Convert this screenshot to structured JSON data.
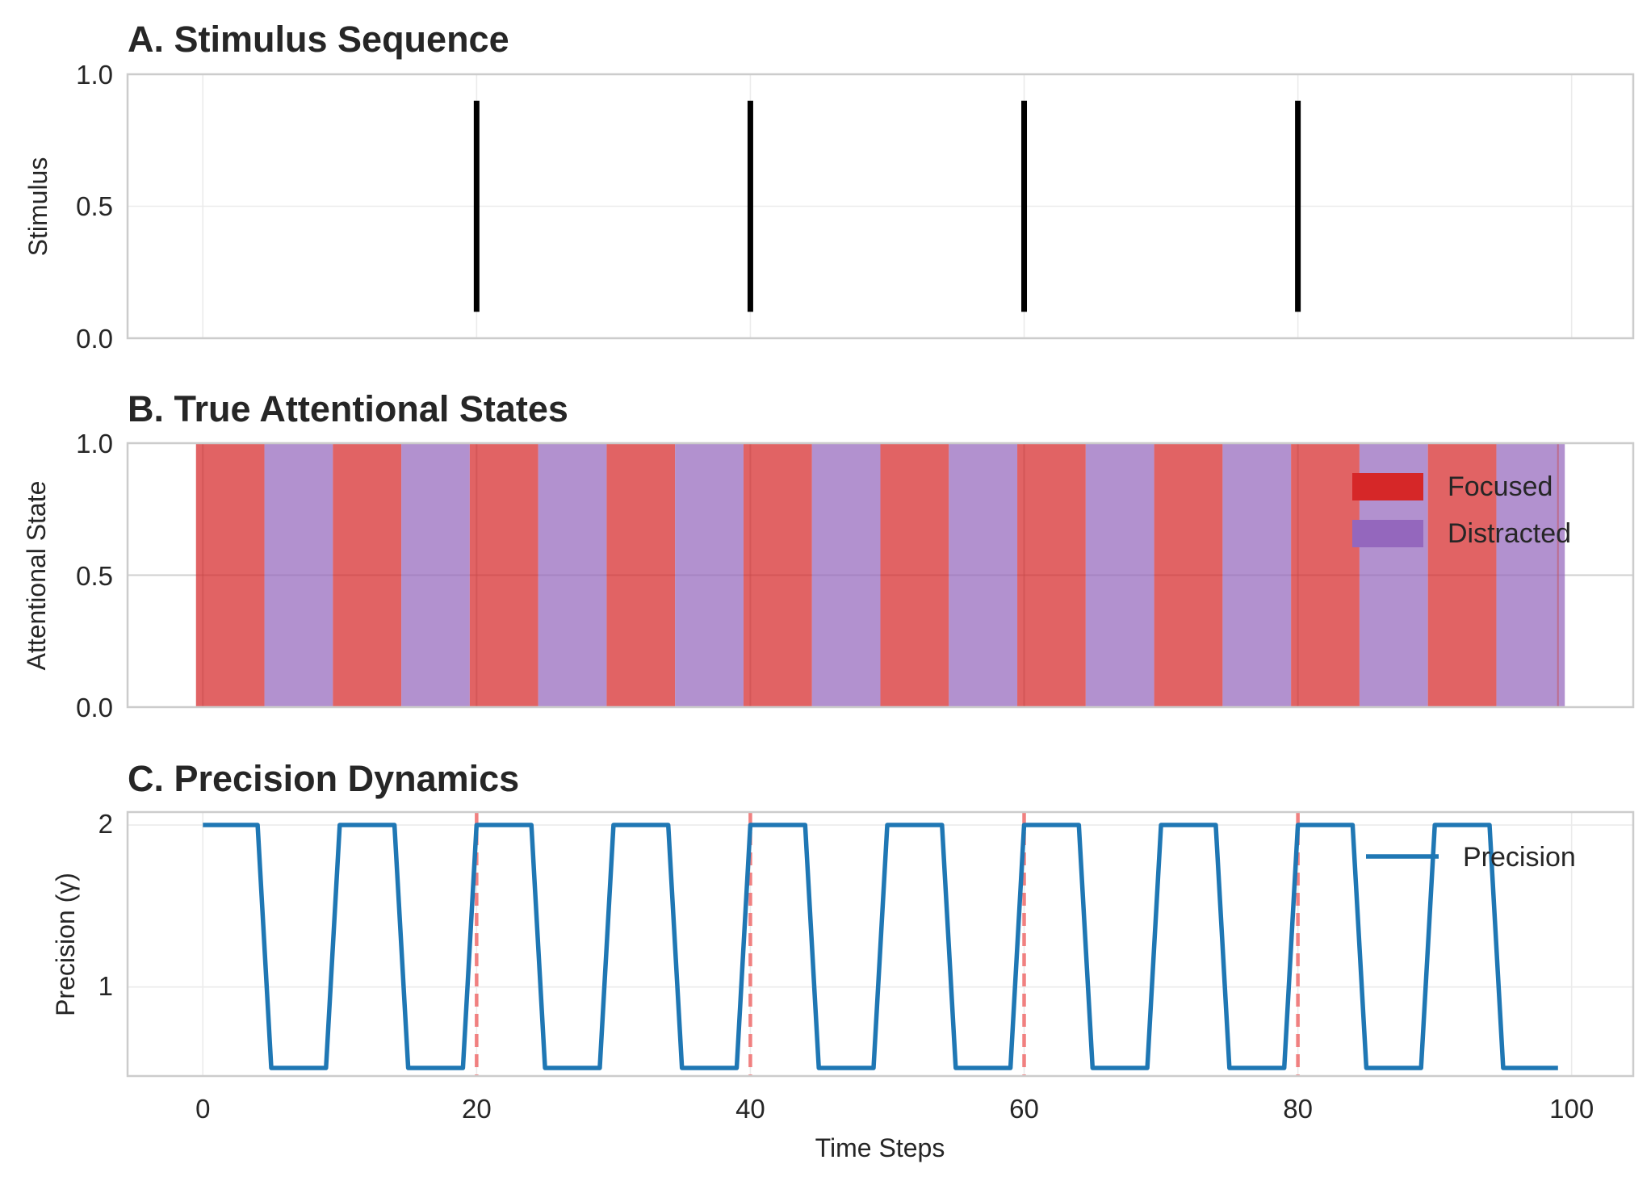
{
  "chart_data": [
    {
      "type": "line",
      "title": "A. Stimulus Sequence",
      "ylabel": "Stimulus",
      "xlabel": "",
      "xlim": [
        -5.5,
        104.5
      ],
      "ylim": [
        0,
        1
      ],
      "yticks": [
        "0.0",
        "0.5",
        "1.0"
      ],
      "grid": true,
      "stimulus_onsets": [
        20,
        40,
        60,
        80
      ],
      "stimulus_span": [
        0.1,
        0.9
      ],
      "colors": {
        "stimulus": "#000000"
      }
    },
    {
      "type": "area",
      "title": "B. True Attentional States",
      "ylabel": "Attentional State",
      "xlabel": "",
      "xlim": [
        -5.5,
        104.5
      ],
      "ylim": [
        0,
        1
      ],
      "yticks": [
        "0.0",
        "0.5",
        "1.0"
      ],
      "grid": true,
      "legend_position": "top-right",
      "legend": [
        {
          "label": "Focused",
          "color": "#d62728"
        },
        {
          "label": "Distracted",
          "color": "#9467bd"
        }
      ],
      "block_length": 5,
      "blocks": [
        "Focused",
        "Distracted",
        "Focused",
        "Distracted",
        "Focused",
        "Distracted",
        "Focused",
        "Distracted",
        "Focused",
        "Distracted",
        "Focused",
        "Distracted",
        "Focused",
        "Distracted",
        "Focused",
        "Distracted",
        "Focused",
        "Distracted",
        "Focused",
        "Distracted"
      ],
      "x_start": -0.5,
      "marker_lines": [
        0,
        20,
        40,
        60,
        80,
        99
      ]
    },
    {
      "type": "line",
      "title": "C. Precision Dynamics",
      "ylabel": "Precision (γ)",
      "xlabel": "Time Steps",
      "xlim": [
        -5.5,
        104.5
      ],
      "ylim": [
        0.45,
        2.08
      ],
      "yticks": [
        "1",
        "2"
      ],
      "xticks": [
        "0",
        "20",
        "40",
        "60",
        "80",
        "100"
      ],
      "grid": true,
      "legend_position": "top-right",
      "series": [
        {
          "name": "Precision",
          "color": "#1f77b4",
          "x": [
            0,
            4,
            5,
            9,
            10,
            14,
            15,
            19,
            20,
            24,
            25,
            29,
            30,
            34,
            35,
            39,
            40,
            44,
            45,
            49,
            50,
            54,
            55,
            59,
            60,
            64,
            65,
            69,
            70,
            74,
            75,
            79,
            80,
            84,
            85,
            89,
            90,
            94,
            95,
            99
          ],
          "y": [
            2,
            2,
            0.5,
            0.5,
            2,
            2,
            0.5,
            0.5,
            2,
            2,
            0.5,
            0.5,
            2,
            2,
            0.5,
            0.5,
            2,
            2,
            0.5,
            0.5,
            2,
            2,
            0.5,
            0.5,
            2,
            2,
            0.5,
            0.5,
            2,
            2,
            0.5,
            0.5,
            2,
            2,
            0.5,
            0.5,
            2,
            2,
            0.5,
            0.5
          ]
        }
      ],
      "stimulus_lines": [
        20,
        40,
        60,
        80
      ],
      "colors": {
        "stimulus_line": "#f08080"
      }
    }
  ]
}
